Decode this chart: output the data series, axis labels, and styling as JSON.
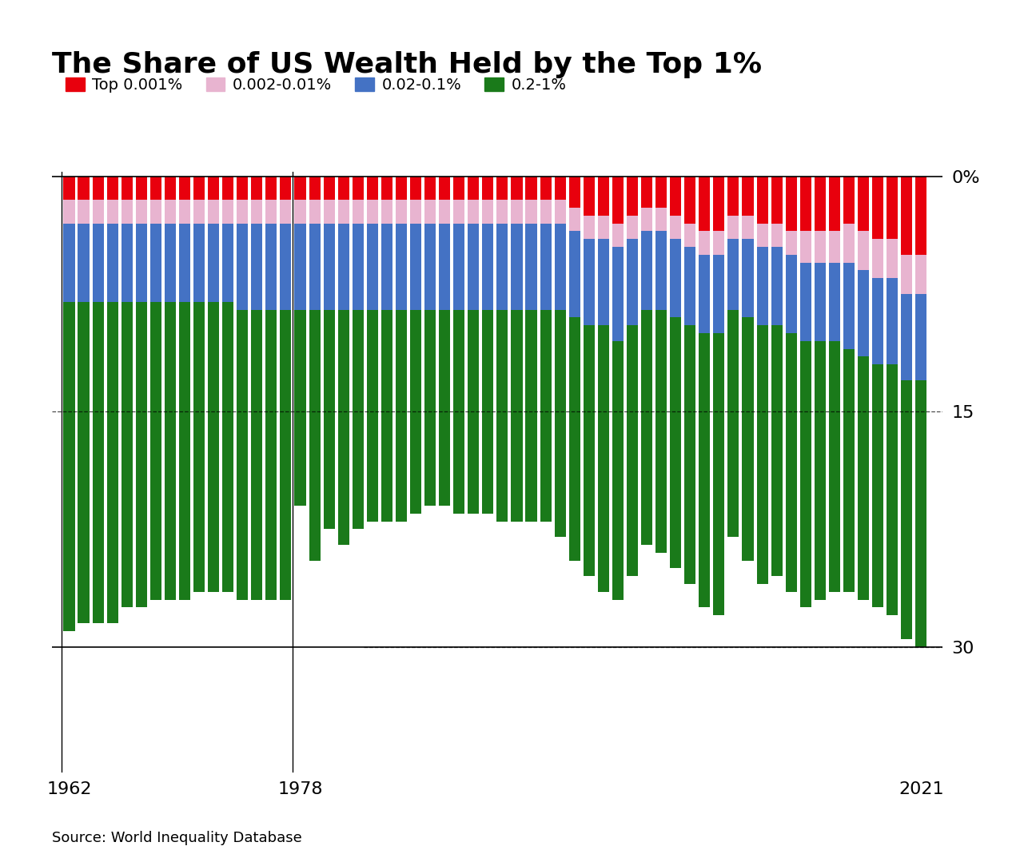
{
  "title": "The Share of US Wealth Held by the Top 1%",
  "source": "Source: World Inequality Database",
  "legend_labels": [
    "Top 0.001%",
    "0.002-0.01%",
    "0.02-0.1%",
    "0.2-1%"
  ],
  "colors": [
    "#e8000d",
    "#e8b4d0",
    "#4472c4",
    "#1a7a1a"
  ],
  "years": [
    1962,
    1963,
    1964,
    1965,
    1966,
    1967,
    1968,
    1969,
    1970,
    1971,
    1972,
    1973,
    1974,
    1975,
    1976,
    1977,
    1978,
    1979,
    1980,
    1981,
    1982,
    1983,
    1984,
    1985,
    1986,
    1987,
    1988,
    1989,
    1990,
    1991,
    1992,
    1993,
    1994,
    1995,
    1996,
    1997,
    1998,
    1999,
    2000,
    2001,
    2002,
    2003,
    2004,
    2005,
    2006,
    2007,
    2008,
    2009,
    2010,
    2011,
    2012,
    2013,
    2014,
    2015,
    2016,
    2017,
    2018,
    2019,
    2020,
    2021
  ],
  "top_001": [
    1.5,
    1.5,
    1.5,
    1.5,
    1.5,
    1.5,
    1.5,
    1.5,
    1.5,
    1.5,
    1.5,
    1.5,
    1.5,
    1.5,
    1.5,
    1.5,
    1.5,
    1.5,
    1.5,
    1.5,
    1.5,
    1.5,
    1.5,
    1.5,
    1.5,
    1.5,
    1.5,
    1.5,
    1.5,
    1.5,
    1.5,
    1.5,
    1.5,
    1.5,
    1.5,
    2.0,
    2.5,
    2.5,
    3.0,
    2.5,
    2.0,
    2.0,
    2.5,
    3.0,
    3.5,
    3.5,
    2.5,
    2.5,
    3.0,
    3.0,
    3.5,
    3.5,
    3.5,
    3.5,
    3.0,
    3.5,
    4.0,
    4.0,
    5.0,
    5.0
  ],
  "band2": [
    1.5,
    1.5,
    1.5,
    1.5,
    1.5,
    1.5,
    1.5,
    1.5,
    1.5,
    1.5,
    1.5,
    1.5,
    1.5,
    1.5,
    1.5,
    1.5,
    1.5,
    1.5,
    1.5,
    1.5,
    1.5,
    1.5,
    1.5,
    1.5,
    1.5,
    1.5,
    1.5,
    1.5,
    1.5,
    1.5,
    1.5,
    1.5,
    1.5,
    1.5,
    1.5,
    1.5,
    1.5,
    1.5,
    1.5,
    1.5,
    1.5,
    1.5,
    1.5,
    1.5,
    1.5,
    1.5,
    1.5,
    1.5,
    1.5,
    1.5,
    1.5,
    2.0,
    2.0,
    2.0,
    2.5,
    2.5,
    2.5,
    2.5,
    2.5,
    2.5
  ],
  "band3": [
    5.0,
    5.0,
    5.0,
    5.0,
    5.0,
    5.0,
    5.0,
    5.0,
    5.0,
    5.0,
    5.0,
    5.0,
    5.5,
    5.5,
    5.5,
    5.5,
    5.5,
    5.5,
    5.5,
    5.5,
    5.5,
    5.5,
    5.5,
    5.5,
    5.5,
    5.5,
    5.5,
    5.5,
    5.5,
    5.5,
    5.5,
    5.5,
    5.5,
    5.5,
    5.5,
    5.5,
    5.5,
    5.5,
    6.0,
    5.5,
    5.0,
    5.0,
    5.0,
    5.0,
    5.0,
    5.0,
    4.5,
    5.0,
    5.0,
    5.0,
    5.0,
    5.0,
    5.0,
    5.0,
    5.5,
    5.5,
    5.5,
    5.5,
    5.5,
    5.5
  ],
  "band4": [
    19.0,
    18.5,
    18.5,
    18.5,
    18.0,
    18.0,
    17.5,
    17.5,
    17.5,
    17.0,
    17.0,
    17.0,
    17.0,
    17.0,
    17.0,
    17.0,
    12.5,
    15.5,
    14.0,
    14.5,
    14.0,
    13.5,
    13.5,
    13.5,
    13.0,
    12.5,
    12.5,
    13.0,
    13.0,
    13.0,
    13.5,
    13.5,
    13.5,
    13.5,
    14.5,
    15.5,
    16.0,
    17.0,
    16.5,
    16.0,
    15.0,
    15.5,
    16.0,
    16.5,
    17.5,
    18.0,
    14.5,
    15.5,
    16.5,
    16.0,
    16.5,
    17.0,
    16.5,
    16.0,
    15.5,
    15.5,
    15.5,
    16.0,
    16.5,
    16.5
  ],
  "band4_extra": [
    2.0,
    2.0,
    2.0,
    2.0,
    1.5,
    1.5,
    1.5,
    1.5,
    1.5,
    1.5,
    1.5,
    1.5,
    1.5,
    1.5,
    1.5,
    1.5,
    0.0,
    0.5,
    0.0,
    0.5,
    0.0,
    0.0,
    0.0,
    0.0,
    0.0,
    0.0,
    0.0,
    0.0,
    0.0,
    0.0,
    0.0,
    0.0,
    0.0,
    0.0,
    0.0,
    0.0,
    0.0,
    0.0,
    0.0,
    0.0,
    0.0,
    0.0,
    0.0,
    0.0,
    0.0,
    0.0,
    0.0,
    0.0,
    0.0,
    0.0,
    0.0,
    0.0,
    0.0,
    0.0,
    0.0,
    0.0,
    0.0,
    0.0,
    0.0,
    0.5
  ],
  "ytick_labels": [
    "0%",
    "15",
    "30"
  ],
  "ytick_positions": [
    0,
    15,
    30
  ],
  "xtick_labels": [
    "1962",
    "1978",
    "2021"
  ],
  "xtick_positions": [
    1962,
    1978,
    2021
  ],
  "ylim_bottom": 38,
  "ylim_top": -0.3,
  "xlim_left": 1960.8,
  "xlim_right": 2022.5,
  "background_color": "#ffffff",
  "title_fontsize": 26,
  "legend_fontsize": 14,
  "axis_fontsize": 16,
  "bar_width": 0.78
}
